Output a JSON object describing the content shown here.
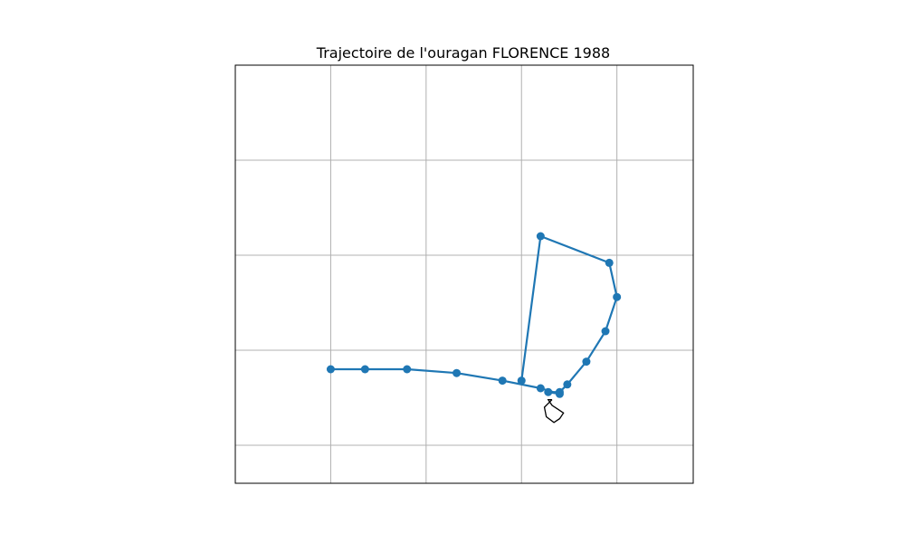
{
  "chart_data": {
    "type": "line",
    "title": "Trajectoire de l'ouragan FLORENCE 1988",
    "xlabel": "",
    "ylabel": "",
    "grid": true,
    "xlim": [
      -95,
      -83
    ],
    "ylim": [
      23,
      34
    ],
    "gridlines_x": [
      -92.5,
      -90,
      -87.5,
      -85
    ],
    "gridlines_y": [
      24,
      26.5,
      29,
      31.5
    ],
    "series": [
      {
        "color": "#1f77b4",
        "marker": "circle",
        "x": [
          -92.5,
          -91.6,
          -90.5,
          -89.2,
          -88.0,
          -87.0,
          -86.5,
          -86.8,
          -86.5,
          -86.3,
          -85.8,
          -85.3,
          -85.0,
          -85.2,
          -87.0,
          -87.5
        ],
        "y": [
          26.0,
          26.0,
          26.0,
          25.9,
          25.7,
          25.5,
          25.35,
          25.4,
          25.4,
          25.6,
          26.2,
          27.0,
          27.9,
          28.8,
          29.5,
          25.7
        ]
      }
    ],
    "coastline": {
      "color": "#000000",
      "x": [
        -86.7,
        -86.9,
        -86.85,
        -86.65,
        -86.5,
        -86.4,
        -86.55,
        -86.7,
        -86.8,
        -86.7
      ],
      "y": [
        25.2,
        25.0,
        24.75,
        24.6,
        24.7,
        24.85,
        24.95,
        25.05,
        25.2,
        25.2
      ]
    }
  }
}
